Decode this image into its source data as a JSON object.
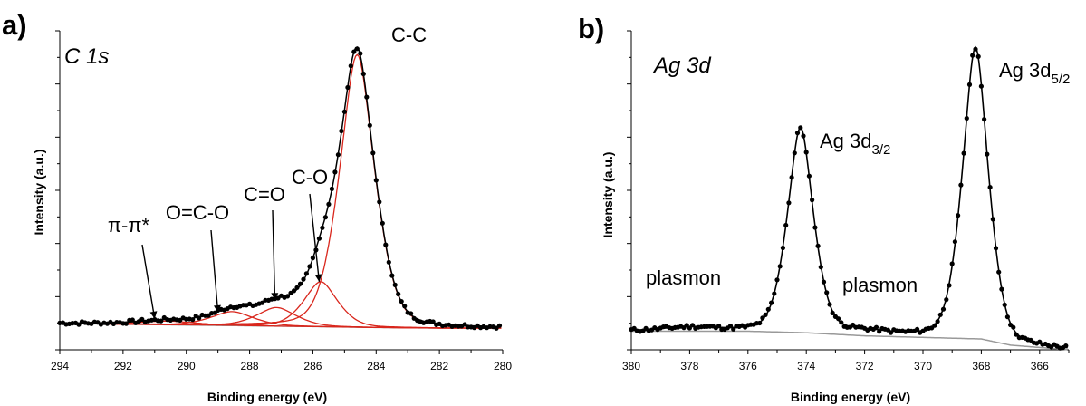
{
  "chart_data": [
    {
      "panel_label": "a)",
      "title": "C 1s",
      "type": "line",
      "xlabel": "Binding energy (eV)",
      "ylabel": "Intensity (a.u.)",
      "xlim": [
        294,
        280
      ],
      "xticks": [
        "294",
        "292",
        "290",
        "288",
        "286",
        "284",
        "282",
        "280"
      ],
      "yticks_labeled": false,
      "background": [
        [
          294,
          0.085
        ],
        [
          290,
          0.08
        ],
        [
          286,
          0.075
        ],
        [
          284,
          0.072
        ],
        [
          282,
          0.07
        ],
        [
          280,
          0.07
        ]
      ],
      "components": [
        {
          "name": "C-C",
          "center": 284.6,
          "amplitude": 0.88,
          "width": 0.62
        },
        {
          "name": "C-O",
          "center": 285.75,
          "amplitude": 0.145,
          "width": 0.6
        },
        {
          "name": "C=O",
          "center": 287.15,
          "amplitude": 0.06,
          "width": 0.7
        },
        {
          "name": "O=C-O",
          "center": 288.55,
          "amplitude": 0.045,
          "width": 0.75
        },
        {
          "name": "π-π*",
          "center": 290.6,
          "amplitude": 0.012,
          "width": 1.0
        }
      ],
      "annotations": [
        {
          "text": "C-C",
          "target": [
            284.5,
            0.96
          ]
        },
        {
          "text": "C-O",
          "target": [
            285.8,
            0.22
          ]
        },
        {
          "text": "C=O",
          "target": [
            287.2,
            0.16
          ]
        },
        {
          "text": "O=C-O",
          "target": [
            289.0,
            0.12
          ]
        },
        {
          "text": "π-π*",
          "target": [
            291.0,
            0.1
          ]
        }
      ],
      "colors": {
        "data": "#000000",
        "fit": "#000000",
        "components": "#d9261c",
        "background": "#999999"
      }
    },
    {
      "panel_label": "b)",
      "title": "Ag 3d",
      "type": "line",
      "xlabel": "Binding energy (eV)",
      "ylabel": "Intensity (a.u.)",
      "xlim": [
        380,
        365
      ],
      "xticks": [
        "380",
        "378",
        "376",
        "374",
        "372",
        "370",
        "368",
        "366"
      ],
      "yticks_labeled": false,
      "background": [
        [
          380,
          0.06
        ],
        [
          376,
          0.06
        ],
        [
          374,
          0.055
        ],
        [
          372,
          0.045
        ],
        [
          370,
          0.04
        ],
        [
          368,
          0.035
        ],
        [
          367,
          0.015
        ],
        [
          365,
          0.0
        ]
      ],
      "peaks": [
        {
          "name": "Ag 3d3/2",
          "center": 374.2,
          "amplitude": 0.66,
          "width": 0.5
        },
        {
          "name": "Ag 3d5/2",
          "center": 368.2,
          "amplitude": 0.94,
          "width": 0.5
        },
        {
          "name": "plasmon",
          "center": 378.0,
          "amplitude": 0.012,
          "width": 1.0
        },
        {
          "name": "plasmon",
          "center": 372.0,
          "amplitude": 0.012,
          "width": 1.0
        }
      ],
      "labels": {
        "peak1_main": "Ag 3d",
        "peak1_sub": "3/2",
        "peak2_main": "Ag 3d",
        "peak2_sub": "5/2",
        "plasmon1": "plasmon",
        "plasmon2": "plasmon"
      },
      "colors": {
        "data": "#000000",
        "fit": "#000000",
        "background": "#999999"
      }
    }
  ]
}
